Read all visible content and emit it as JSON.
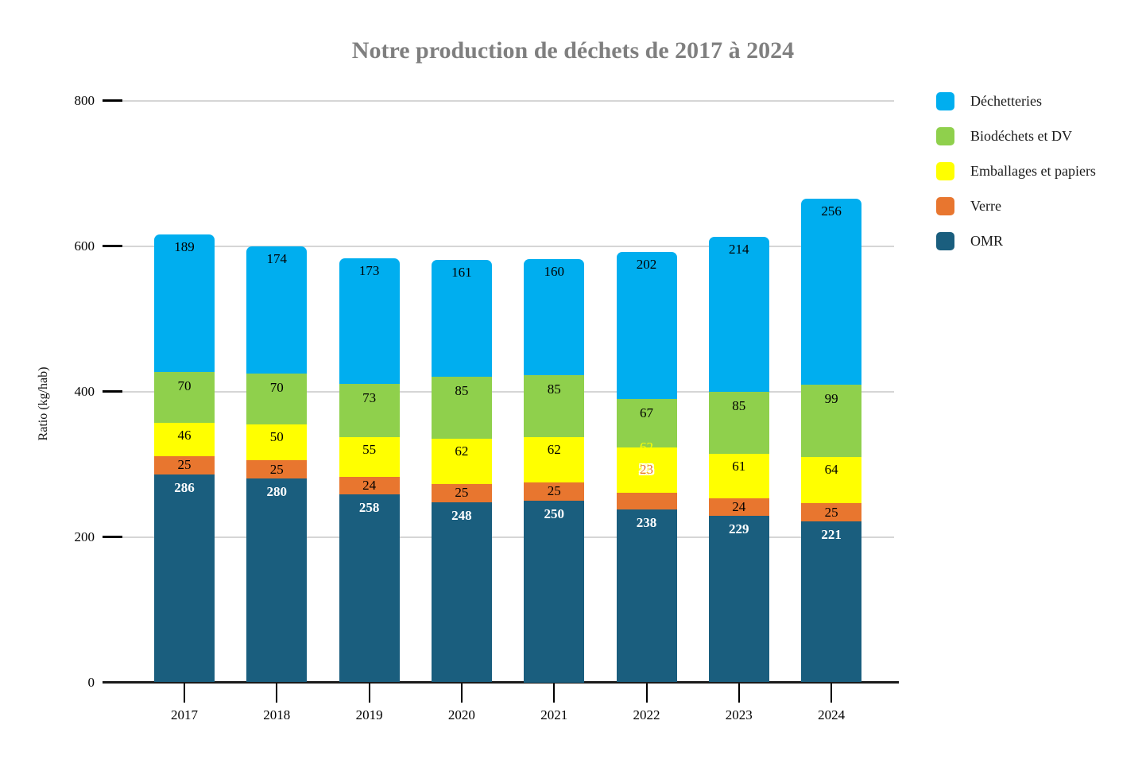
{
  "chart_data": {
    "type": "bar",
    "stacked": true,
    "title": "Notre production de déchets de 2017 à 2024",
    "xlabel": "",
    "ylabel": "Ratio (kg/hab)",
    "categories": [
      "2017",
      "2018",
      "2019",
      "2020",
      "2021",
      "2022",
      "2023",
      "2024"
    ],
    "series": [
      {
        "name": "OMR",
        "color": "#1A5E7E",
        "label_color": "#FFFFFF",
        "values": [
          286,
          280,
          258,
          248,
          250,
          238,
          229,
          221
        ]
      },
      {
        "name": "Verre",
        "color": "#E8762F",
        "label_color": "#000000",
        "values": [
          25,
          25,
          24,
          25,
          25,
          23,
          24,
          25
        ]
      },
      {
        "name": "Emballages et papiers",
        "color": "#FFFF00",
        "label_color": "#000000",
        "values": [
          46,
          50,
          55,
          62,
          62,
          62,
          61,
          64
        ]
      },
      {
        "name": "Biodéchets et DV",
        "color": "#8FD04C",
        "label_color": "#000000",
        "values": [
          70,
          70,
          73,
          85,
          85,
          67,
          85,
          99
        ]
      },
      {
        "name": "Déchetteries",
        "color": "#00AEEF",
        "label_color": "#000000",
        "values": [
          189,
          174,
          173,
          161,
          160,
          202,
          214,
          256
        ]
      }
    ],
    "legend": [
      "Déchetteries",
      "Biodéchets et DV",
      "Emballages et papiers",
      "Verre",
      "OMR"
    ],
    "legend_position": "right",
    "ylim": [
      0,
      800
    ],
    "yticks": [
      0,
      200,
      400,
      600,
      800
    ],
    "grid": true,
    "label_anomalies": [
      {
        "category": "2022",
        "series": "Emballages et papiers",
        "label_color": "#FFFF00",
        "note": "label drawn in yellow straddling the green/yellow boundary, mostly invisible on the yellow segment"
      },
      {
        "category": "2022",
        "series": "Verre",
        "label_color": "#E8762F",
        "note": "label drawn in orange with a white outline, placed inside the yellow segment"
      }
    ]
  }
}
